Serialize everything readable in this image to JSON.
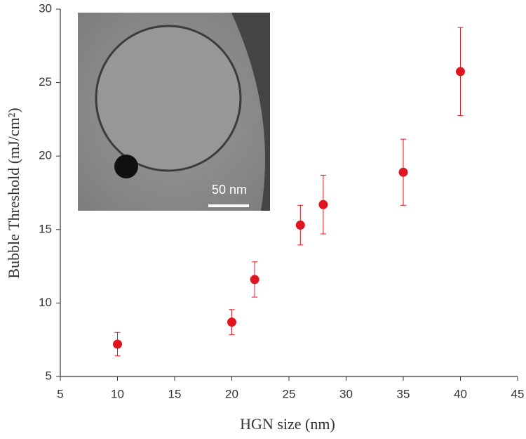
{
  "chart_data": {
    "type": "scatter",
    "xlabel": "HGN size (nm)",
    "ylabel": "Bubble Threshold (mJ/cm²)",
    "inset_scale_label": "50 nm",
    "x": [
      10,
      20,
      22,
      26,
      28,
      35,
      40
    ],
    "values": [
      7.2,
      8.7,
      11.6,
      15.3,
      16.7,
      18.9,
      25.75
    ],
    "errors": [
      0.8,
      0.85,
      1.2,
      1.35,
      2.0,
      2.25,
      3.0
    ],
    "color": "#e0151f",
    "xlim": [
      5,
      45
    ],
    "xticks": [
      5,
      10,
      15,
      20,
      25,
      30,
      35,
      40,
      45
    ],
    "ylim": [
      5,
      30
    ],
    "yticks": [
      5,
      10,
      15,
      20,
      25,
      30
    ]
  }
}
